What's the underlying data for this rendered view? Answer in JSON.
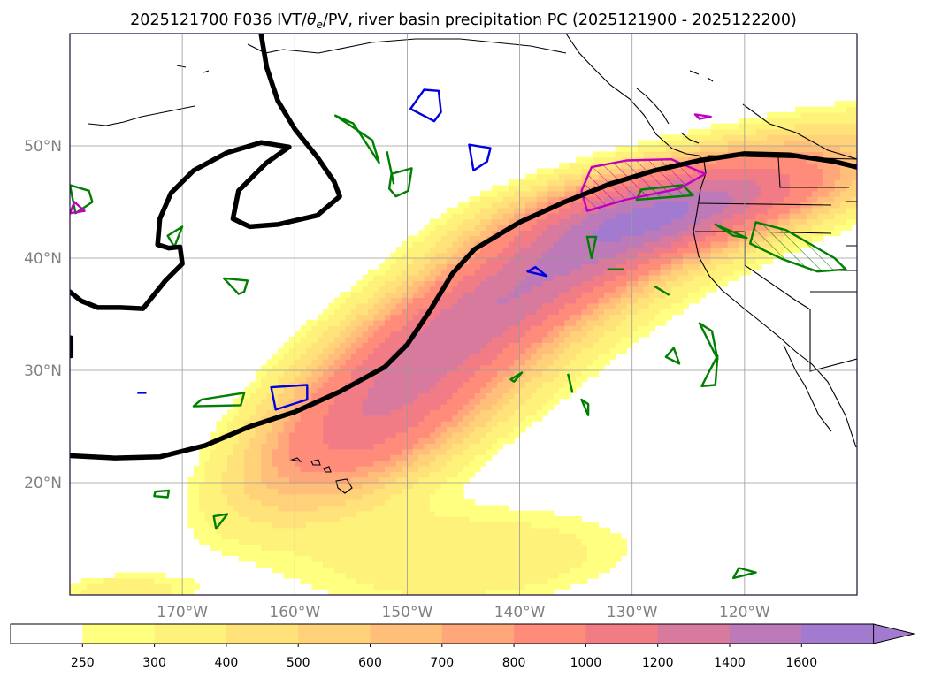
{
  "chart_data": {
    "type": "heatmap",
    "title": "2025121700 F036 IVT/θe/PV, river basin precipitation PC (2025121900 - 2025122200)",
    "title_parts": {
      "prefix": "2025121700 F036 IVT/",
      "theta": "θ",
      "theta_sub": "e",
      "suffix": "/PV, river basin precipitation PC (2025121900 - 2025122200)"
    },
    "map": {
      "lon_range": [
        -180,
        -110
      ],
      "lat_range": [
        10,
        60
      ],
      "lon_ticks": [
        {
          "value": -170,
          "label": "170°W"
        },
        {
          "value": -160,
          "label": "160°W"
        },
        {
          "value": -150,
          "label": "150°W"
        },
        {
          "value": -140,
          "label": "140°W"
        },
        {
          "value": -130,
          "label": "130°W"
        },
        {
          "value": -120,
          "label": "120°W"
        }
      ],
      "lat_ticks": [
        {
          "value": 20,
          "label": "20°N"
        },
        {
          "value": 30,
          "label": "30°N"
        },
        {
          "value": 40,
          "label": "40°N"
        },
        {
          "value": 50,
          "label": "50°N"
        }
      ],
      "grid": true
    },
    "colorbar": {
      "levels": [
        250,
        300,
        400,
        500,
        600,
        700,
        800,
        1000,
        1200,
        1400,
        1600
      ],
      "labels": [
        "250",
        "300",
        "400",
        "500",
        "600",
        "700",
        "800",
        "1000",
        "1200",
        "1400",
        "1600"
      ],
      "colors": [
        "#ffffff",
        "#ffff80",
        "#fff27a",
        "#ffe27a",
        "#ffd27a",
        "#ffbf7a",
        "#ffa77a",
        "#ff8c7a",
        "#f27c86",
        "#d87a9e",
        "#bd7ab8",
        "#a27ad0"
      ],
      "extend": "max"
    },
    "ivt_plumes": [
      {
        "name": "atmospheric-river-core",
        "lon": -142,
        "lat": 36,
        "strength": 1050,
        "half_length": 15,
        "half_width": 3.3,
        "angle_deg": 36
      },
      {
        "name": "atmospheric-river-tail",
        "lon": -152,
        "lat": 24,
        "strength": 520,
        "half_length": 8,
        "half_width": 3.2,
        "angle_deg": 28
      },
      {
        "name": "coastal-landfall",
        "lon": -126,
        "lat": 44.5,
        "strength": 720,
        "half_length": 8,
        "half_width": 2.6,
        "angle_deg": 12
      },
      {
        "name": "broad-envelope",
        "lon": -140,
        "lat": 35,
        "strength": 330,
        "half_length": 21,
        "half_width": 7.5,
        "angle_deg": 33
      },
      {
        "name": "southern-band",
        "lon": -143,
        "lat": 13,
        "strength": 360,
        "half_length": 14,
        "half_width": 4.2,
        "angle_deg": 5
      },
      {
        "name": "southern-band-west",
        "lon": -176,
        "lat": 10.3,
        "strength": 290,
        "half_length": 5,
        "half_width": 1.3,
        "angle_deg": 0
      }
    ],
    "theta_e_contours": [
      {
        "name": "theta-e-front",
        "points": [
          [
            -180,
            22.4
          ],
          [
            -176,
            22.2
          ],
          [
            -172,
            22.3
          ],
          [
            -168,
            23.3
          ],
          [
            -164,
            25.0
          ],
          [
            -160,
            26.3
          ],
          [
            -156,
            28.1
          ],
          [
            -152,
            30.3
          ],
          [
            -150,
            32.3
          ],
          [
            -148,
            35.3
          ],
          [
            -146,
            38.6
          ],
          [
            -144,
            40.8
          ],
          [
            -140,
            43.2
          ],
          [
            -136,
            45.0
          ],
          [
            -132,
            46.6
          ],
          [
            -128,
            47.8
          ],
          [
            -124,
            48.7
          ],
          [
            -120,
            49.3
          ],
          [
            -116,
            49.2
          ],
          [
            -112,
            48.6
          ],
          [
            -110,
            48.1
          ]
        ]
      },
      {
        "name": "theta-e-trough",
        "points": [
          [
            -163,
            60
          ],
          [
            -162.5,
            57
          ],
          [
            -161.5,
            54
          ],
          [
            -160,
            51.5
          ],
          [
            -158,
            49
          ],
          [
            -156.5,
            46.8
          ],
          [
            -156,
            45.5
          ],
          [
            -158,
            43.8
          ],
          [
            -161.5,
            43.0
          ],
          [
            -164,
            42.8
          ],
          [
            -165.5,
            43.5
          ],
          [
            -165,
            46
          ],
          [
            -162.5,
            48.5
          ],
          [
            -160.5,
            49.9
          ],
          [
            -163,
            50.3
          ],
          [
            -166,
            49.4
          ],
          [
            -169,
            47.8
          ],
          [
            -171,
            45.8
          ],
          [
            -172,
            43.5
          ],
          [
            -172.2,
            41.2
          ],
          [
            -171.2,
            40.9
          ],
          [
            -170.2,
            41.0
          ],
          [
            -170,
            39.5
          ],
          [
            -171.5,
            38
          ],
          [
            -173.5,
            35.5
          ],
          [
            -175.5,
            35.6
          ],
          [
            -177.5,
            35.6
          ],
          [
            -179,
            36.2
          ],
          [
            -180,
            37
          ]
        ]
      },
      {
        "name": "theta-e-edge",
        "points": [
          [
            -179.9,
            31.3
          ],
          [
            -179.9,
            32.9
          ]
        ]
      }
    ],
    "pv_contours": {
      "green": [
        {
          "name": "pv-green-1",
          "points": [
            [
              -179.5,
              44
            ],
            [
              -178,
              45
            ],
            [
              -178.3,
              46
            ],
            [
              -180,
              46.5
            ]
          ]
        },
        {
          "name": "pv-green-2",
          "points": [
            [
              -170.7,
              41
            ],
            [
              -170,
              42.8
            ],
            [
              -171.3,
              42
            ],
            [
              -170.7,
              41
            ]
          ]
        },
        {
          "name": "pv-green-3",
          "points": [
            [
              -166.3,
              38.2
            ],
            [
              -164.2,
              38
            ],
            [
              -164.5,
              37
            ],
            [
              -165,
              36.8
            ]
          ]
        },
        {
          "name": "pv-green-4",
          "points": [
            [
              -168.3,
              27.4
            ],
            [
              -164.5,
              28
            ],
            [
              -164.8,
              26.9
            ],
            [
              -169,
              26.8
            ]
          ]
        },
        {
          "name": "pv-green-5",
          "points": [
            [
              -172.4,
              19.2
            ],
            [
              -171.2,
              19.3
            ],
            [
              -171.3,
              18.7
            ],
            [
              -172.5,
              18.8
            ]
          ]
        },
        {
          "name": "pv-green-6",
          "points": [
            [
              -167.2,
              17
            ],
            [
              -166,
              17.2
            ],
            [
              -167,
              15.9
            ]
          ]
        },
        {
          "name": "pv-green-7",
          "points": [
            [
              -153.1,
              50.5
            ],
            [
              -152.5,
              48.5
            ],
            [
              -154.8,
              52
            ],
            [
              -156.4,
              52.7
            ]
          ]
        },
        {
          "name": "pv-green-8",
          "points": [
            [
              -151.4,
              47.5
            ],
            [
              -149.6,
              48
            ],
            [
              -149.9,
              46
            ],
            [
              -151,
              45.5
            ],
            [
              -151.6,
              46.2
            ]
          ]
        },
        {
          "name": "pv-green-9",
          "points": [
            [
              -151.8,
              49.5
            ],
            [
              -151.2,
              46.6
            ]
          ]
        },
        {
          "name": "pv-green-10",
          "points": [
            [
              -134,
              41.9
            ],
            [
              -133.2,
              41.9
            ],
            [
              -133.6,
              40
            ]
          ]
        },
        {
          "name": "pv-green-11",
          "points": [
            [
              -132.2,
              39
            ],
            [
              -130.7,
              39
            ]
          ]
        },
        {
          "name": "pv-green-12",
          "points": [
            [
              -128,
              37.5
            ],
            [
              -126.7,
              36.7
            ]
          ]
        },
        {
          "name": "pv-green-13",
          "points": [
            [
              -124,
              34.2
            ],
            [
              -122.9,
              33.5
            ],
            [
              -122.4,
              31
            ]
          ]
        },
        {
          "name": "pv-green-14",
          "points": [
            [
              -127,
              31.2
            ],
            [
              -125.8,
              30.6
            ],
            [
              -126.3,
              32
            ]
          ]
        },
        {
          "name": "pv-green-15",
          "points": [
            [
              -123.8,
              28.6
            ],
            [
              -122.6,
              28.7
            ],
            [
              -122.4,
              31.3
            ],
            [
              -123.2,
              29.8
            ]
          ]
        },
        {
          "name": "pv-green-16",
          "points": [
            [
              -140.5,
              29.0
            ],
            [
              -139.8,
              29.8
            ],
            [
              -140.8,
              29.2
            ]
          ]
        },
        {
          "name": "pv-green-17",
          "points": [
            [
              -135.7,
              29.7
            ],
            [
              -135.3,
              28
            ]
          ]
        },
        {
          "name": "pv-green-18",
          "points": [
            [
              -134.5,
              27.4
            ],
            [
              -133.9,
              27.0
            ],
            [
              -133.9,
              26.0
            ]
          ]
        },
        {
          "name": "pv-green-19",
          "points": [
            [
              -121,
              11.5
            ],
            [
              -119,
              12.0
            ],
            [
              -120.5,
              12.4
            ]
          ]
        },
        {
          "name": "pv-green-20",
          "points": [
            [
              -129.2,
              46.1
            ],
            [
              -125.5,
              46.5
            ],
            [
              -124.6,
              45.6
            ],
            [
              -129.6,
              45.2
            ]
          ]
        },
        {
          "name": "pv-green-21",
          "points": [
            [
              -122.6,
              43
            ],
            [
              -121,
              42
            ],
            [
              -119.8,
              41.8
            ]
          ]
        },
        {
          "name": "pv-green-22",
          "points": [
            [
              -119,
              43.2
            ],
            [
              -116.3,
              42.5
            ],
            [
              -112,
              40
            ],
            [
              -111,
              39
            ],
            [
              -113.5,
              38.8
            ],
            [
              -116.6,
              39.9
            ],
            [
              -119.5,
              41.3
            ]
          ]
        }
      ],
      "blue": [
        {
          "name": "pv-blue-1",
          "points": [
            [
              -148.5,
              55
            ],
            [
              -147.2,
              54.9
            ],
            [
              -147,
              53
            ],
            [
              -147.6,
              52.2
            ],
            [
              -149.7,
              53.3
            ]
          ]
        },
        {
          "name": "pv-blue-2",
          "points": [
            [
              -144.5,
              50.1
            ],
            [
              -142.6,
              49.8
            ],
            [
              -142.9,
              48.6
            ],
            [
              -144.1,
              47.8
            ]
          ]
        },
        {
          "name": "pv-blue-3",
          "points": [
            [
              -162.1,
              28.5
            ],
            [
              -158.9,
              28.7
            ],
            [
              -158.9,
              27.4
            ],
            [
              -161.7,
              26.5
            ]
          ]
        },
        {
          "name": "pv-blue-4",
          "points": [
            [
              -139.3,
              38.8
            ],
            [
              -138.6,
              39.2
            ],
            [
              -137.6,
              38.4
            ]
          ]
        },
        {
          "name": "pv-blue-5",
          "points": [
            [
              -174,
              28
            ],
            [
              -173.2,
              28
            ]
          ]
        }
      ],
      "magenta": [
        {
          "name": "pv-magenta-1",
          "points": [
            [
              -179.6,
              45
            ],
            [
              -178.7,
              44.2
            ],
            [
              -180,
              44
            ]
          ]
        },
        {
          "name": "pv-magenta-2",
          "points": [
            [
              -133.6,
              48.1
            ],
            [
              -130.5,
              48.7
            ],
            [
              -126.5,
              48.8
            ],
            [
              -123.5,
              47.5
            ],
            [
              -125.8,
              46.2
            ],
            [
              -130.6,
              45.2
            ],
            [
              -134,
              44.2
            ],
            [
              -134.5,
              46
            ]
          ]
        },
        {
          "name": "pv-magenta-3",
          "points": [
            [
              -124.4,
              52.8
            ],
            [
              -123,
              52.6
            ],
            [
              -124,
              52.4
            ]
          ]
        }
      ]
    }
  }
}
